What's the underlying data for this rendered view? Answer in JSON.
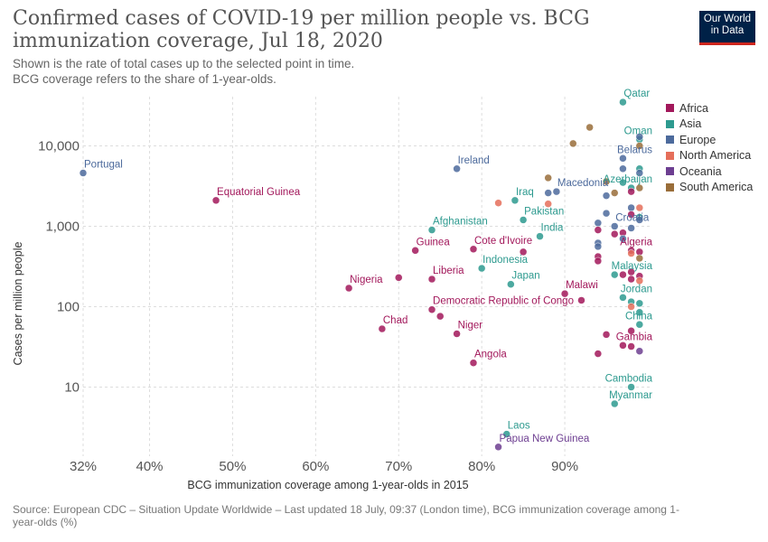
{
  "header": {
    "title": "Confirmed cases of COVID-19 per million people vs. BCG immunization coverage, Jul 18, 2020",
    "subtitle_line1": "Shown is the rate of total cases up to the selected point in time.",
    "subtitle_line2": "BCG coverage refers to the share of 1-year-olds."
  },
  "logo": {
    "line1": "Our World",
    "line2": "in Data",
    "bg": "#002147",
    "accent": "#ce261e"
  },
  "footer": {
    "source": "Source: European CDC – Situation Update Worldwide – Last updated 18 July, 09:37 (London time), BCG immunization coverage among 1-year-olds (%)"
  },
  "legend": [
    {
      "label": "Africa",
      "color": "#a2185b"
    },
    {
      "label": "Asia",
      "color": "#2d9a8f"
    },
    {
      "label": "Europe",
      "color": "#4c6a9c"
    },
    {
      "label": "North America",
      "color": "#e56e5a"
    },
    {
      "label": "Oceania",
      "color": "#6d3e91"
    },
    {
      "label": "South America",
      "color": "#996d39"
    }
  ],
  "chart_data": {
    "type": "scatter",
    "xlabel": "BCG immunization coverage among 1-year-olds in 2015",
    "ylabel": "Cases per million people",
    "x_scale": "linear",
    "y_scale": "log",
    "xlim": [
      32,
      100
    ],
    "ylim": [
      1.7,
      36000
    ],
    "x_ticks": [
      32,
      40,
      50,
      60,
      70,
      80,
      90
    ],
    "x_tick_labels": [
      "32%",
      "40%",
      "50%",
      "60%",
      "70%",
      "80%",
      "90%"
    ],
    "y_ticks": [
      10,
      100,
      1000,
      10000
    ],
    "y_tick_labels": [
      "10",
      "100",
      "1,000",
      "10,000"
    ],
    "grid": true,
    "legend_position": "right",
    "series_colors": {
      "Africa": "#a2185b",
      "Asia": "#2d9a8f",
      "Europe": "#4c6a9c",
      "North America": "#e56e5a",
      "Oceania": "#6d3e91",
      "South America": "#996d39"
    },
    "points": [
      {
        "x": 32,
        "y": 4600,
        "region": "Europe",
        "label": "Portugal"
      },
      {
        "x": 48,
        "y": 2100,
        "region": "Africa",
        "label": "Equatorial Guinea"
      },
      {
        "x": 77,
        "y": 5200,
        "region": "Europe",
        "label": "Ireland"
      },
      {
        "x": 97,
        "y": 35000,
        "region": "Asia",
        "label": "Qatar"
      },
      {
        "x": 99,
        "y": 12000,
        "region": "Asia",
        "label": "Oman"
      },
      {
        "x": 97,
        "y": 7000,
        "region": "Europe",
        "label": "Belarus"
      },
      {
        "x": 89,
        "y": 2700,
        "region": "Europe",
        "label": "Macedonia"
      },
      {
        "x": 98,
        "y": 3000,
        "region": "Asia",
        "label": "Azerbaijan"
      },
      {
        "x": 84,
        "y": 2100,
        "region": "Asia",
        "label": "Iraq"
      },
      {
        "x": 85,
        "y": 1200,
        "region": "Asia",
        "label": "Pakistan"
      },
      {
        "x": 74,
        "y": 900,
        "region": "Asia",
        "label": "Afghanistan"
      },
      {
        "x": 87,
        "y": 750,
        "region": "Asia",
        "label": "India"
      },
      {
        "x": 96,
        "y": 1000,
        "region": "Europe",
        "label": "Croatia"
      },
      {
        "x": 98,
        "y": 500,
        "region": "Africa",
        "label": "Algeria"
      },
      {
        "x": 72,
        "y": 500,
        "region": "Africa",
        "label": "Guinea"
      },
      {
        "x": 79,
        "y": 520,
        "region": "Africa",
        "label": "Cote d'Ivoire"
      },
      {
        "x": 80,
        "y": 300,
        "region": "Asia",
        "label": "Indonesia"
      },
      {
        "x": 96,
        "y": 250,
        "region": "Asia",
        "label": "Malaysia"
      },
      {
        "x": 74,
        "y": 220,
        "region": "Africa",
        "label": "Liberia"
      },
      {
        "x": 64,
        "y": 170,
        "region": "Africa",
        "label": "Nigeria"
      },
      {
        "x": 83.5,
        "y": 190,
        "region": "Asia",
        "label": "Japan"
      },
      {
        "x": 90,
        "y": 145,
        "region": "Africa",
        "label": "Malawi"
      },
      {
        "x": 97,
        "y": 130,
        "region": "Asia",
        "label": "Jordan"
      },
      {
        "x": 74,
        "y": 92,
        "region": "Africa",
        "label": "Democratic Republic of Congo"
      },
      {
        "x": 99,
        "y": 60,
        "region": "Asia",
        "label": "China"
      },
      {
        "x": 68,
        "y": 53,
        "region": "Africa",
        "label": "Chad"
      },
      {
        "x": 77,
        "y": 46,
        "region": "Africa",
        "label": "Niger"
      },
      {
        "x": 97,
        "y": 33,
        "region": "Africa",
        "label": "Gambia"
      },
      {
        "x": 79,
        "y": 20,
        "region": "Africa",
        "label": "Angola"
      },
      {
        "x": 98,
        "y": 10,
        "region": "Asia",
        "label": "Cambodia"
      },
      {
        "x": 96,
        "y": 6.2,
        "region": "Asia",
        "label": "Myanmar"
      },
      {
        "x": 83,
        "y": 2.6,
        "region": "Asia",
        "label": "Laos"
      },
      {
        "x": 82,
        "y": 1.8,
        "region": "Oceania",
        "label": "Papua New Guinea"
      },
      {
        "x": 93,
        "y": 17000,
        "region": "South America",
        "label": ""
      },
      {
        "x": 91,
        "y": 10700,
        "region": "South America",
        "label": ""
      },
      {
        "x": 88,
        "y": 4000,
        "region": "South America",
        "label": ""
      },
      {
        "x": 82,
        "y": 1950,
        "region": "North America",
        "label": ""
      },
      {
        "x": 88,
        "y": 1900,
        "region": "North America",
        "label": ""
      },
      {
        "x": 88,
        "y": 2600,
        "region": "Europe",
        "label": ""
      },
      {
        "x": 95,
        "y": 3600,
        "region": "South America",
        "label": ""
      },
      {
        "x": 96,
        "y": 2600,
        "region": "South America",
        "label": ""
      },
      {
        "x": 95,
        "y": 2400,
        "region": "Europe",
        "label": ""
      },
      {
        "x": 97,
        "y": 5200,
        "region": "Europe",
        "label": ""
      },
      {
        "x": 97,
        "y": 3500,
        "region": "Asia",
        "label": ""
      },
      {
        "x": 98,
        "y": 2700,
        "region": "Africa",
        "label": ""
      },
      {
        "x": 99,
        "y": 5200,
        "region": "Asia",
        "label": ""
      },
      {
        "x": 99,
        "y": 10000,
        "region": "South America",
        "label": ""
      },
      {
        "x": 99,
        "y": 13000,
        "region": "Europe",
        "label": ""
      },
      {
        "x": 99,
        "y": 4600,
        "region": "Europe",
        "label": ""
      },
      {
        "x": 99,
        "y": 3000,
        "region": "South America",
        "label": ""
      },
      {
        "x": 98,
        "y": 1700,
        "region": "Europe",
        "label": ""
      },
      {
        "x": 99,
        "y": 1700,
        "region": "North America",
        "label": ""
      },
      {
        "x": 99,
        "y": 1300,
        "region": "Asia",
        "label": ""
      },
      {
        "x": 98,
        "y": 1400,
        "region": "Africa",
        "label": ""
      },
      {
        "x": 99,
        "y": 1200,
        "region": "Europe",
        "label": ""
      },
      {
        "x": 94,
        "y": 1100,
        "region": "Europe",
        "label": ""
      },
      {
        "x": 95,
        "y": 1450,
        "region": "Europe",
        "label": ""
      },
      {
        "x": 94,
        "y": 900,
        "region": "Africa",
        "label": ""
      },
      {
        "x": 96,
        "y": 800,
        "region": "Africa",
        "label": ""
      },
      {
        "x": 97,
        "y": 830,
        "region": "Africa",
        "label": ""
      },
      {
        "x": 98,
        "y": 950,
        "region": "Europe",
        "label": ""
      },
      {
        "x": 99,
        "y": 480,
        "region": "Africa",
        "label": ""
      },
      {
        "x": 98,
        "y": 460,
        "region": "North America",
        "label": ""
      },
      {
        "x": 99,
        "y": 400,
        "region": "South America",
        "label": ""
      },
      {
        "x": 97,
        "y": 700,
        "region": "Europe",
        "label": ""
      },
      {
        "x": 94,
        "y": 620,
        "region": "Europe",
        "label": ""
      },
      {
        "x": 94,
        "y": 560,
        "region": "Europe",
        "label": ""
      },
      {
        "x": 94,
        "y": 420,
        "region": "Africa",
        "label": ""
      },
      {
        "x": 94,
        "y": 370,
        "region": "Africa",
        "label": ""
      },
      {
        "x": 98,
        "y": 270,
        "region": "Africa",
        "label": ""
      },
      {
        "x": 99,
        "y": 240,
        "region": "Africa",
        "label": ""
      },
      {
        "x": 98,
        "y": 220,
        "region": "Africa",
        "label": ""
      },
      {
        "x": 99,
        "y": 210,
        "region": "North America",
        "label": ""
      },
      {
        "x": 97,
        "y": 250,
        "region": "Africa",
        "label": ""
      },
      {
        "x": 92,
        "y": 120,
        "region": "Africa",
        "label": ""
      },
      {
        "x": 98,
        "y": 115,
        "region": "Asia",
        "label": ""
      },
      {
        "x": 99,
        "y": 110,
        "region": "Asia",
        "label": ""
      },
      {
        "x": 98,
        "y": 100,
        "region": "North America",
        "label": ""
      },
      {
        "x": 99,
        "y": 85,
        "region": "Asia",
        "label": ""
      },
      {
        "x": 98,
        "y": 50,
        "region": "Africa",
        "label": ""
      },
      {
        "x": 95,
        "y": 45,
        "region": "Africa",
        "label": ""
      },
      {
        "x": 98,
        "y": 32,
        "region": "Africa",
        "label": ""
      },
      {
        "x": 99,
        "y": 28,
        "region": "Oceania",
        "label": ""
      },
      {
        "x": 94,
        "y": 26,
        "region": "Africa",
        "label": ""
      },
      {
        "x": 70,
        "y": 230,
        "region": "Africa",
        "label": ""
      },
      {
        "x": 75,
        "y": 76,
        "region": "Africa",
        "label": ""
      },
      {
        "x": 85,
        "y": 480,
        "region": "Africa",
        "label": ""
      }
    ]
  }
}
